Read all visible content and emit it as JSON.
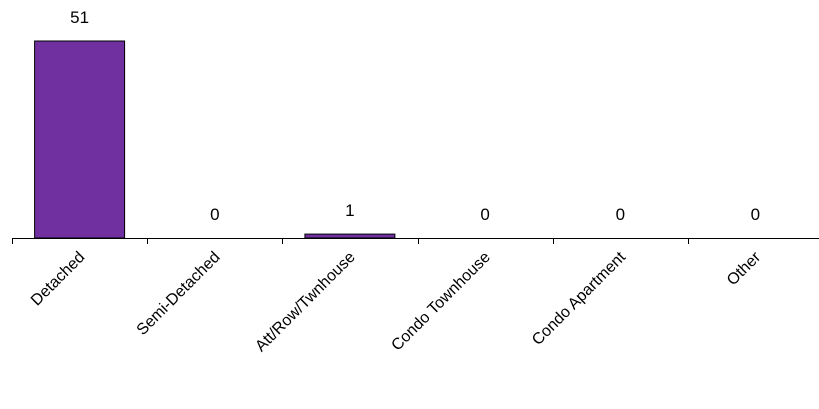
{
  "chart_data": {
    "type": "bar",
    "categories": [
      "Detached",
      "Semi-Detached",
      "Att/Row/Twnhouse",
      "Condo Townhouse",
      "Condo Apartment",
      "Other"
    ],
    "values": [
      51,
      0,
      1,
      0,
      0,
      0
    ],
    "data_labels": [
      "51",
      "0",
      "1",
      "0",
      "0",
      "0"
    ],
    "title": "",
    "xlabel": "",
    "ylabel": "",
    "ylim": [
      0,
      51
    ],
    "bar_color": "#7030a0",
    "bar_outline": "#000000",
    "grid": false,
    "legend": "none"
  }
}
